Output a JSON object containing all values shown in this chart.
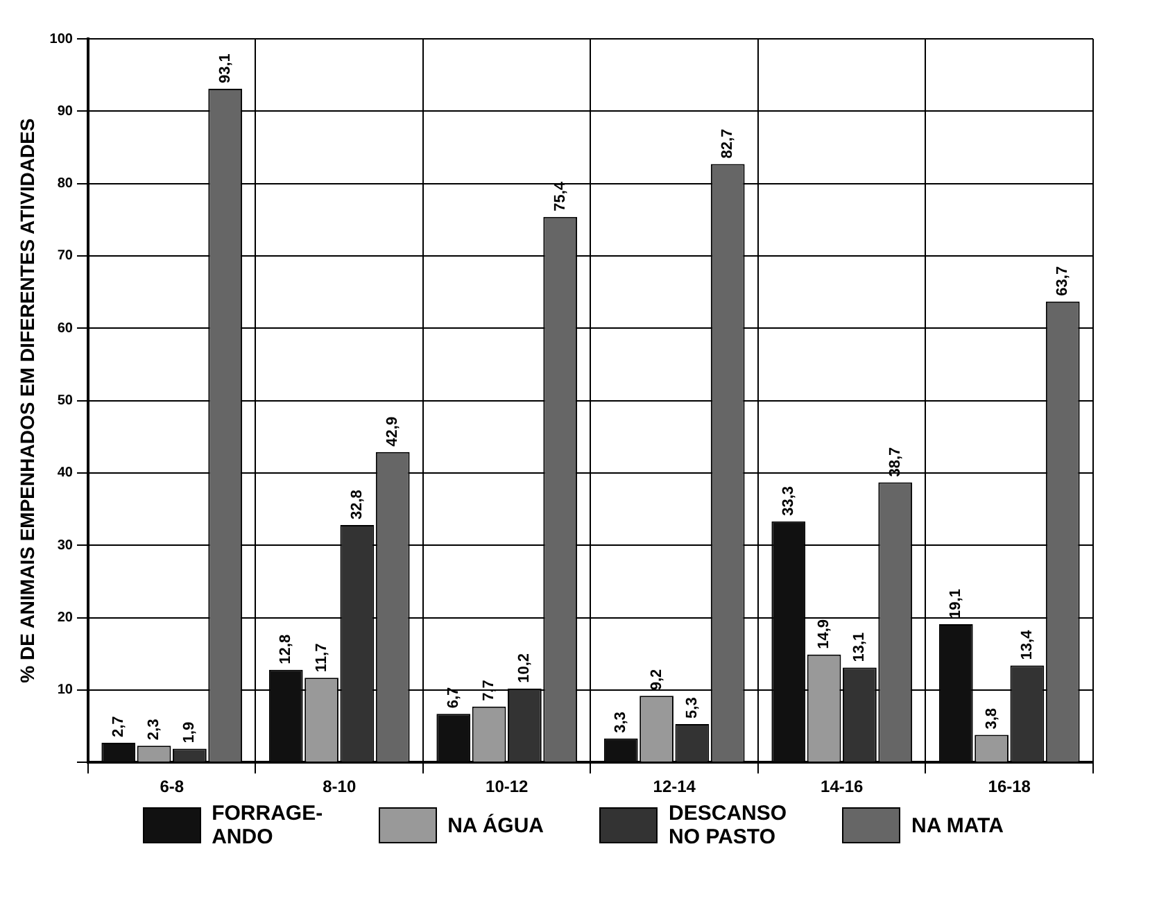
{
  "chart_data": {
    "type": "bar",
    "ylabel": "% DE ANIMAIS EMPENHADOS EM DIFERENTES ATIVIDADES",
    "categories": [
      "6-8",
      "8-10",
      "10-12",
      "12-14",
      "14-16",
      "16-18"
    ],
    "series": [
      {
        "name": "FORRAGE-\nANDO",
        "color": "#111111",
        "values": [
          2.7,
          12.8,
          6.7,
          3.3,
          33.3,
          19.1
        ],
        "value_labels": [
          "2,7",
          "12,8",
          "6,7",
          "3,3",
          "33,3",
          "19,1"
        ]
      },
      {
        "name": "NA ÁGUA",
        "color": "#999999",
        "values": [
          2.3,
          11.7,
          7.7,
          9.2,
          14.9,
          3.8
        ],
        "value_labels": [
          "2,3",
          "11,7",
          "7,7",
          "9,2",
          "14,9",
          "3,8"
        ]
      },
      {
        "name": "DESCANSO\nNO PASTO",
        "color": "#333333",
        "values": [
          1.9,
          32.8,
          10.2,
          5.3,
          13.1,
          13.4
        ],
        "value_labels": [
          "1,9",
          "32,8",
          "10,2",
          "5,3",
          "13,1",
          "13,4"
        ]
      },
      {
        "name": "NA MATA",
        "color": "#666666",
        "values": [
          93.1,
          42.9,
          75.4,
          82.7,
          38.7,
          63.7
        ],
        "value_labels": [
          "93,1",
          "42,9",
          "75,4",
          "82,7",
          "38,7",
          "63,7"
        ]
      }
    ],
    "ylim": [
      0,
      100
    ],
    "yticks": [
      {
        "value": 0,
        "label": null
      },
      10,
      20,
      30,
      40,
      50,
      60,
      70,
      80,
      90,
      100
    ],
    "grid": true,
    "legend": "bottom"
  }
}
